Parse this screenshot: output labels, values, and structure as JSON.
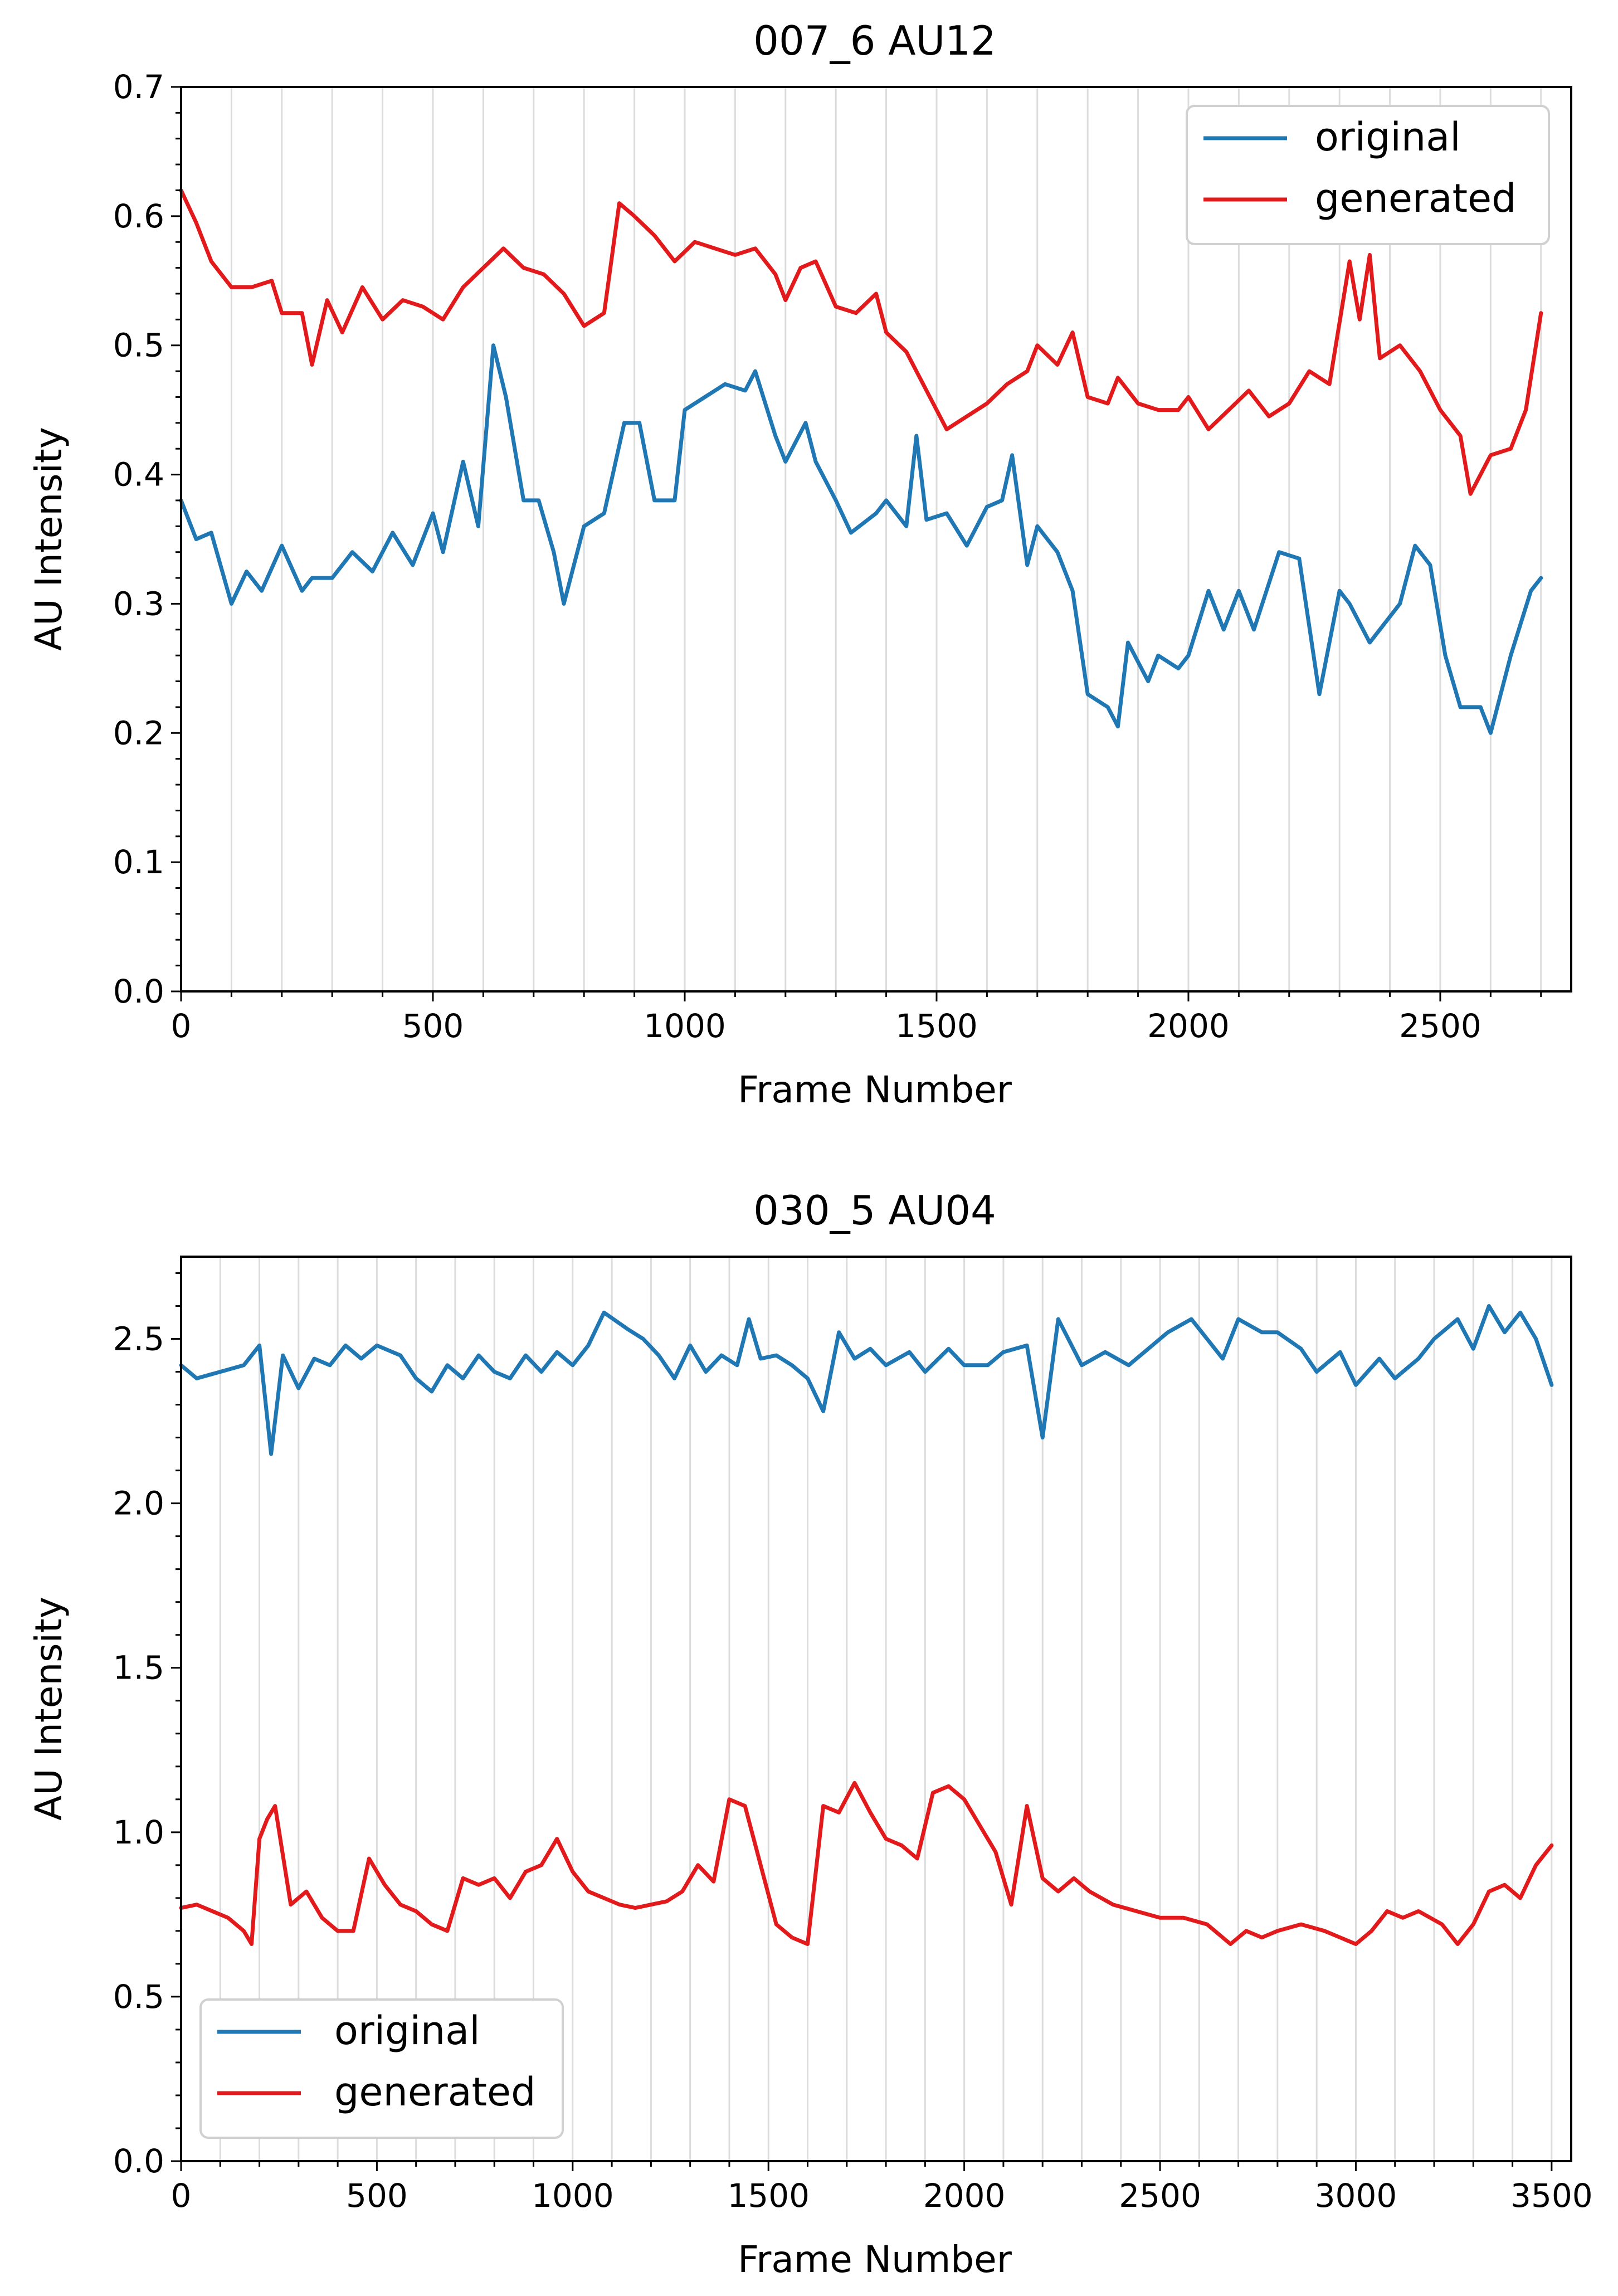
{
  "chart_data": [
    {
      "type": "line",
      "title": "007_6 AU12",
      "xlabel": "Frame Number",
      "ylabel": "AU Intensity",
      "xlim": [
        0,
        2760
      ],
      "ylim": [
        0,
        0.7
      ],
      "xticks": [
        0,
        500,
        1000,
        1500,
        2000,
        2500
      ],
      "xtick_labels": [
        "0",
        "500",
        "1000",
        "1500",
        "2000",
        "2500"
      ],
      "yticks": [
        0,
        0.1,
        0.2,
        0.3,
        0.4,
        0.5,
        0.6,
        0.7
      ],
      "ytick_labels": [
        "0.0",
        "0.1",
        "0.2",
        "0.3",
        "0.4",
        "0.5",
        "0.6",
        "0.7"
      ],
      "grid": "vertical",
      "legend_position": "top-right",
      "series": [
        {
          "name": "original",
          "color": "#1f77b4",
          "x": [
            0,
            30,
            60,
            100,
            130,
            160,
            200,
            240,
            260,
            300,
            340,
            380,
            420,
            460,
            500,
            520,
            560,
            590,
            620,
            645,
            680,
            710,
            740,
            760,
            800,
            840,
            880,
            910,
            940,
            980,
            1000,
            1040,
            1080,
            1120,
            1140,
            1180,
            1200,
            1240,
            1260,
            1300,
            1330,
            1380,
            1400,
            1440,
            1460,
            1480,
            1520,
            1560,
            1600,
            1630,
            1650,
            1680,
            1700,
            1740,
            1770,
            1800,
            1840,
            1860,
            1880,
            1920,
            1940,
            1980,
            2000,
            2040,
            2070,
            2100,
            2130,
            2180,
            2220,
            2260,
            2300,
            2320,
            2360,
            2380,
            2420,
            2450,
            2480,
            2510,
            2540,
            2580,
            2600,
            2640,
            2680,
            2700
          ],
          "y": [
            0.38,
            0.35,
            0.355,
            0.3,
            0.325,
            0.31,
            0.345,
            0.31,
            0.32,
            0.32,
            0.34,
            0.325,
            0.355,
            0.33,
            0.37,
            0.34,
            0.41,
            0.36,
            0.5,
            0.46,
            0.38,
            0.38,
            0.34,
            0.3,
            0.36,
            0.37,
            0.44,
            0.44,
            0.38,
            0.38,
            0.45,
            0.46,
            0.47,
            0.465,
            0.48,
            0.43,
            0.41,
            0.44,
            0.41,
            0.38,
            0.355,
            0.37,
            0.38,
            0.36,
            0.43,
            0.365,
            0.37,
            0.345,
            0.375,
            0.38,
            0.415,
            0.33,
            0.36,
            0.34,
            0.31,
            0.23,
            0.22,
            0.205,
            0.27,
            0.24,
            0.26,
            0.25,
            0.26,
            0.31,
            0.28,
            0.31,
            0.28,
            0.34,
            0.335,
            0.23,
            0.31,
            0.3,
            0.27,
            0.28,
            0.3,
            0.345,
            0.33,
            0.26,
            0.22,
            0.22,
            0.2,
            0.26,
            0.31,
            0.32
          ]
        },
        {
          "name": "generated",
          "color": "#e31a1c",
          "x": [
            0,
            30,
            60,
            100,
            140,
            180,
            200,
            240,
            260,
            290,
            320,
            360,
            400,
            440,
            480,
            520,
            560,
            600,
            640,
            680,
            720,
            760,
            800,
            840,
            870,
            900,
            940,
            980,
            1020,
            1060,
            1100,
            1140,
            1180,
            1200,
            1230,
            1260,
            1300,
            1340,
            1380,
            1400,
            1440,
            1480,
            1520,
            1560,
            1600,
            1640,
            1680,
            1700,
            1740,
            1770,
            1800,
            1840,
            1860,
            1900,
            1940,
            1980,
            2000,
            2040,
            2080,
            2120,
            2160,
            2200,
            2240,
            2280,
            2320,
            2340,
            2360,
            2380,
            2420,
            2460,
            2500,
            2540,
            2560,
            2600,
            2640,
            2670,
            2700
          ],
          "y": [
            0.62,
            0.595,
            0.565,
            0.545,
            0.545,
            0.55,
            0.525,
            0.525,
            0.485,
            0.535,
            0.51,
            0.545,
            0.52,
            0.535,
            0.53,
            0.52,
            0.545,
            0.56,
            0.575,
            0.56,
            0.555,
            0.54,
            0.515,
            0.525,
            0.61,
            0.6,
            0.585,
            0.565,
            0.58,
            0.575,
            0.57,
            0.575,
            0.555,
            0.535,
            0.56,
            0.565,
            0.53,
            0.525,
            0.54,
            0.51,
            0.495,
            0.465,
            0.435,
            0.445,
            0.455,
            0.47,
            0.48,
            0.5,
            0.485,
            0.51,
            0.46,
            0.455,
            0.475,
            0.455,
            0.45,
            0.45,
            0.46,
            0.435,
            0.45,
            0.465,
            0.445,
            0.455,
            0.48,
            0.47,
            0.565,
            0.52,
            0.57,
            0.49,
            0.5,
            0.48,
            0.45,
            0.43,
            0.385,
            0.415,
            0.42,
            0.45,
            0.525
          ]
        }
      ]
    },
    {
      "type": "line",
      "title": "030_5 AU04",
      "xlabel": "Frame Number",
      "ylabel": "AU Intensity",
      "xlim": [
        0,
        3550
      ],
      "ylim": [
        0,
        2.75
      ],
      "xticks": [
        0,
        500,
        1000,
        1500,
        2000,
        2500,
        3000,
        3500
      ],
      "xtick_labels": [
        "0",
        "500",
        "1000",
        "1500",
        "2000",
        "2500",
        "3000",
        "3500"
      ],
      "yticks": [
        0,
        0.5,
        1.0,
        1.5,
        2.0,
        2.5
      ],
      "ytick_labels": [
        "0.0",
        "0.5",
        "1.0",
        "1.5",
        "2.0",
        "2.5"
      ],
      "grid": "vertical",
      "legend_position": "bottom-left",
      "series": [
        {
          "name": "original",
          "color": "#1f77b4",
          "x": [
            0,
            40,
            100,
            160,
            200,
            230,
            260,
            300,
            340,
            380,
            420,
            460,
            500,
            560,
            600,
            640,
            680,
            720,
            760,
            800,
            840,
            880,
            920,
            960,
            1000,
            1040,
            1080,
            1140,
            1180,
            1220,
            1260,
            1300,
            1340,
            1380,
            1420,
            1450,
            1480,
            1520,
            1560,
            1600,
            1640,
            1680,
            1720,
            1760,
            1800,
            1860,
            1900,
            1960,
            2000,
            2060,
            2100,
            2160,
            2200,
            2240,
            2300,
            2360,
            2420,
            2480,
            2520,
            2580,
            2620,
            2660,
            2700,
            2760,
            2800,
            2860,
            2900,
            2960,
            3000,
            3060,
            3100,
            3160,
            3200,
            3260,
            3300,
            3340,
            3380,
            3420,
            3460,
            3500
          ],
          "y": [
            2.42,
            2.38,
            2.4,
            2.42,
            2.48,
            2.15,
            2.45,
            2.35,
            2.44,
            2.42,
            2.48,
            2.44,
            2.48,
            2.45,
            2.38,
            2.34,
            2.42,
            2.38,
            2.45,
            2.4,
            2.38,
            2.45,
            2.4,
            2.46,
            2.42,
            2.48,
            2.58,
            2.53,
            2.5,
            2.45,
            2.38,
            2.48,
            2.4,
            2.45,
            2.42,
            2.56,
            2.44,
            2.45,
            2.42,
            2.38,
            2.28,
            2.52,
            2.44,
            2.47,
            2.42,
            2.46,
            2.4,
            2.47,
            2.42,
            2.42,
            2.46,
            2.48,
            2.2,
            2.56,
            2.42,
            2.46,
            2.42,
            2.48,
            2.52,
            2.56,
            2.5,
            2.44,
            2.56,
            2.52,
            2.52,
            2.47,
            2.4,
            2.46,
            2.36,
            2.44,
            2.38,
            2.44,
            2.5,
            2.56,
            2.47,
            2.6,
            2.52,
            2.58,
            2.5,
            2.36
          ]
        },
        {
          "name": "generated",
          "color": "#e31a1c",
          "x": [
            0,
            40,
            80,
            120,
            160,
            180,
            200,
            220,
            240,
            280,
            320,
            360,
            400,
            440,
            480,
            520,
            560,
            600,
            640,
            680,
            720,
            760,
            800,
            840,
            880,
            920,
            960,
            1000,
            1040,
            1080,
            1120,
            1160,
            1200,
            1240,
            1280,
            1320,
            1360,
            1400,
            1440,
            1480,
            1520,
            1560,
            1600,
            1640,
            1680,
            1720,
            1760,
            1800,
            1840,
            1880,
            1920,
            1960,
            2000,
            2040,
            2080,
            2120,
            2160,
            2200,
            2240,
            2280,
            2320,
            2380,
            2440,
            2500,
            2560,
            2620,
            2680,
            2720,
            2760,
            2800,
            2860,
            2920,
            2960,
            3000,
            3040,
            3080,
            3120,
            3160,
            3220,
            3260,
            3300,
            3340,
            3380,
            3420,
            3460,
            3500
          ],
          "y": [
            0.77,
            0.78,
            0.76,
            0.74,
            0.7,
            0.66,
            0.98,
            1.04,
            1.08,
            0.78,
            0.82,
            0.74,
            0.7,
            0.7,
            0.92,
            0.84,
            0.78,
            0.76,
            0.72,
            0.7,
            0.86,
            0.84,
            0.86,
            0.8,
            0.88,
            0.9,
            0.98,
            0.88,
            0.82,
            0.8,
            0.78,
            0.77,
            0.78,
            0.79,
            0.82,
            0.9,
            0.85,
            1.1,
            1.08,
            0.9,
            0.72,
            0.68,
            0.66,
            1.08,
            1.06,
            1.15,
            1.06,
            0.98,
            0.96,
            0.92,
            1.12,
            1.14,
            1.1,
            1.02,
            0.94,
            0.78,
            1.08,
            0.86,
            0.82,
            0.86,
            0.82,
            0.78,
            0.76,
            0.74,
            0.74,
            0.72,
            0.66,
            0.7,
            0.68,
            0.7,
            0.72,
            0.7,
            0.68,
            0.66,
            0.7,
            0.76,
            0.74,
            0.76,
            0.72,
            0.66,
            0.72,
            0.82,
            0.84,
            0.8,
            0.9,
            0.96
          ]
        }
      ]
    }
  ]
}
